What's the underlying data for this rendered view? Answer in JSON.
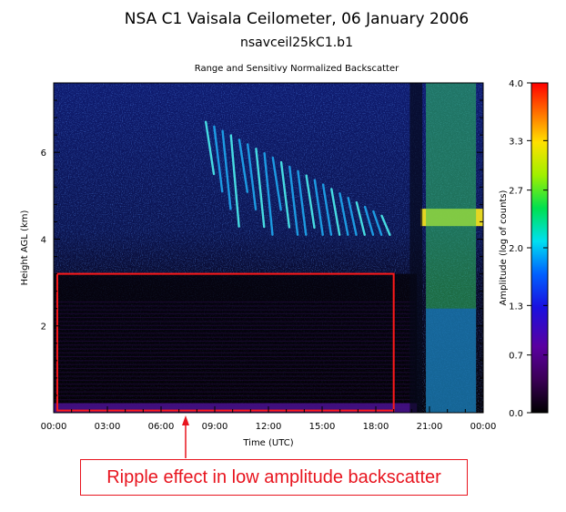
{
  "chart_data": {
    "type": "heatmap",
    "title": "NSA C1 Vaisala Ceilometer, 06 January 2006",
    "subtitle": "nsavceil25kC1.b1",
    "plot_title": "Range and Sensitivy Normalized Backscatter",
    "xlabel": "Time (UTC)",
    "ylabel": "Height AGL (km)",
    "x_ticks": [
      "00:00",
      "03:00",
      "06:00",
      "09:00",
      "12:00",
      "15:00",
      "18:00",
      "21:00",
      "00:00"
    ],
    "x_tick_hours": [
      0,
      3,
      6,
      9,
      12,
      15,
      18,
      21,
      24
    ],
    "xlim": [
      0,
      24
    ],
    "y_ticks": [
      "2",
      "4",
      "6"
    ],
    "y_tick_values": [
      2,
      4,
      6
    ],
    "ylim": [
      0,
      7.6
    ],
    "colorbar": {
      "label": "Amplitude (log of counts)",
      "ticks": [
        "4.0",
        "3.3",
        "2.7",
        "2.0",
        "1.3",
        "0.7",
        "0.0"
      ],
      "tick_values": [
        4.0,
        3.3,
        2.7,
        2.0,
        1.3,
        0.7,
        0.0
      ],
      "range": [
        0,
        4
      ]
    },
    "features": [
      {
        "name": "cloud_layer",
        "x_range_hours": [
          8.5,
          18.8
        ],
        "height_km": [
          4.1,
          6.7
        ],
        "amplitude": 2.2
      },
      {
        "name": "cloud_layer",
        "x_range_hours": [
          20.5,
          24
        ],
        "height_km": [
          4.3,
          4.7
        ],
        "amplitude": 2.6
      },
      {
        "name": "precipitation",
        "x_range_hours": [
          20.8,
          23.6
        ],
        "height_km": [
          0,
          7.6
        ],
        "amplitude": 1.6
      }
    ],
    "highlight_region": {
      "x_range_hours": [
        0.2,
        19.0
      ],
      "height_km": [
        0.05,
        3.2
      ],
      "color": "#ff1a1a"
    }
  },
  "annotation": {
    "text": "Ripple effect in low amplitude backscatter",
    "color": "#e8141e"
  }
}
